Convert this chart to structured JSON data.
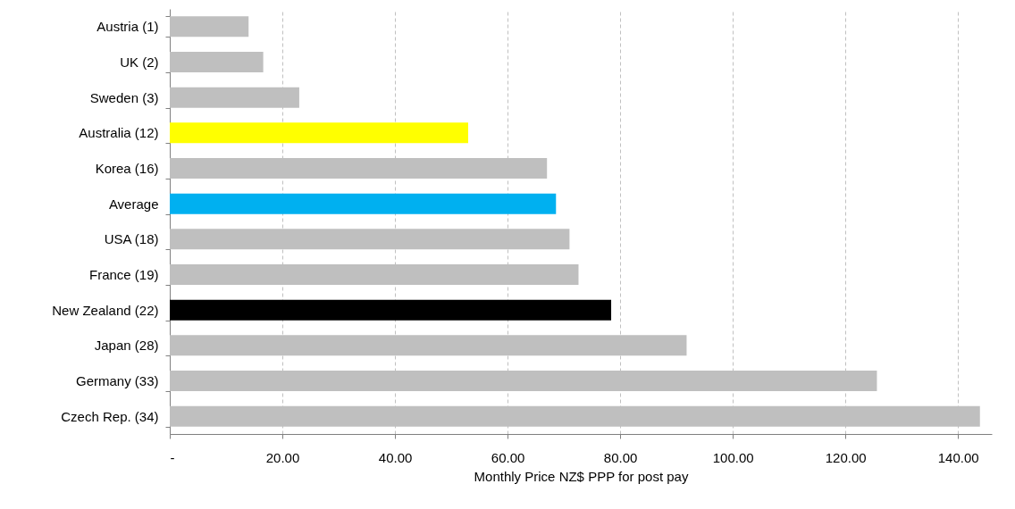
{
  "chart_data": {
    "type": "bar",
    "orientation": "horizontal",
    "xlabel": "Monthly Price NZ$  PPP for post pay",
    "categories": [
      "Austria (1)",
      "UK (2)",
      "Sweden (3)",
      "Australia (12)",
      "Korea (16)",
      "Average",
      "USA (18)",
      "France (19)",
      "New Zealand  (22)",
      "Japan (28)",
      "Germany (33)",
      "Czech Rep. (34)"
    ],
    "values": [
      14.0,
      16.6,
      23.0,
      53.0,
      67.0,
      68.6,
      71.0,
      72.6,
      78.4,
      91.8,
      125.6,
      143.9
    ],
    "colors": [
      "#bfbfbf",
      "#bfbfbf",
      "#bfbfbf",
      "#ffff00",
      "#bfbfbf",
      "#00b0f0",
      "#bfbfbf",
      "#bfbfbf",
      "#000000",
      "#bfbfbf",
      "#bfbfbf",
      "#bfbfbf"
    ],
    "xlim": [
      0,
      146
    ],
    "xticks": [
      {
        "value": 0,
        "label": "-"
      },
      {
        "value": 20,
        "label": "20.00"
      },
      {
        "value": 40,
        "label": "40.00"
      },
      {
        "value": 60,
        "label": "60.00"
      },
      {
        "value": 80,
        "label": "80.00"
      },
      {
        "value": 100,
        "label": "100.00"
      },
      {
        "value": 120,
        "label": "120.00"
      },
      {
        "value": 140,
        "label": "140.00"
      }
    ],
    "grid": "x"
  }
}
